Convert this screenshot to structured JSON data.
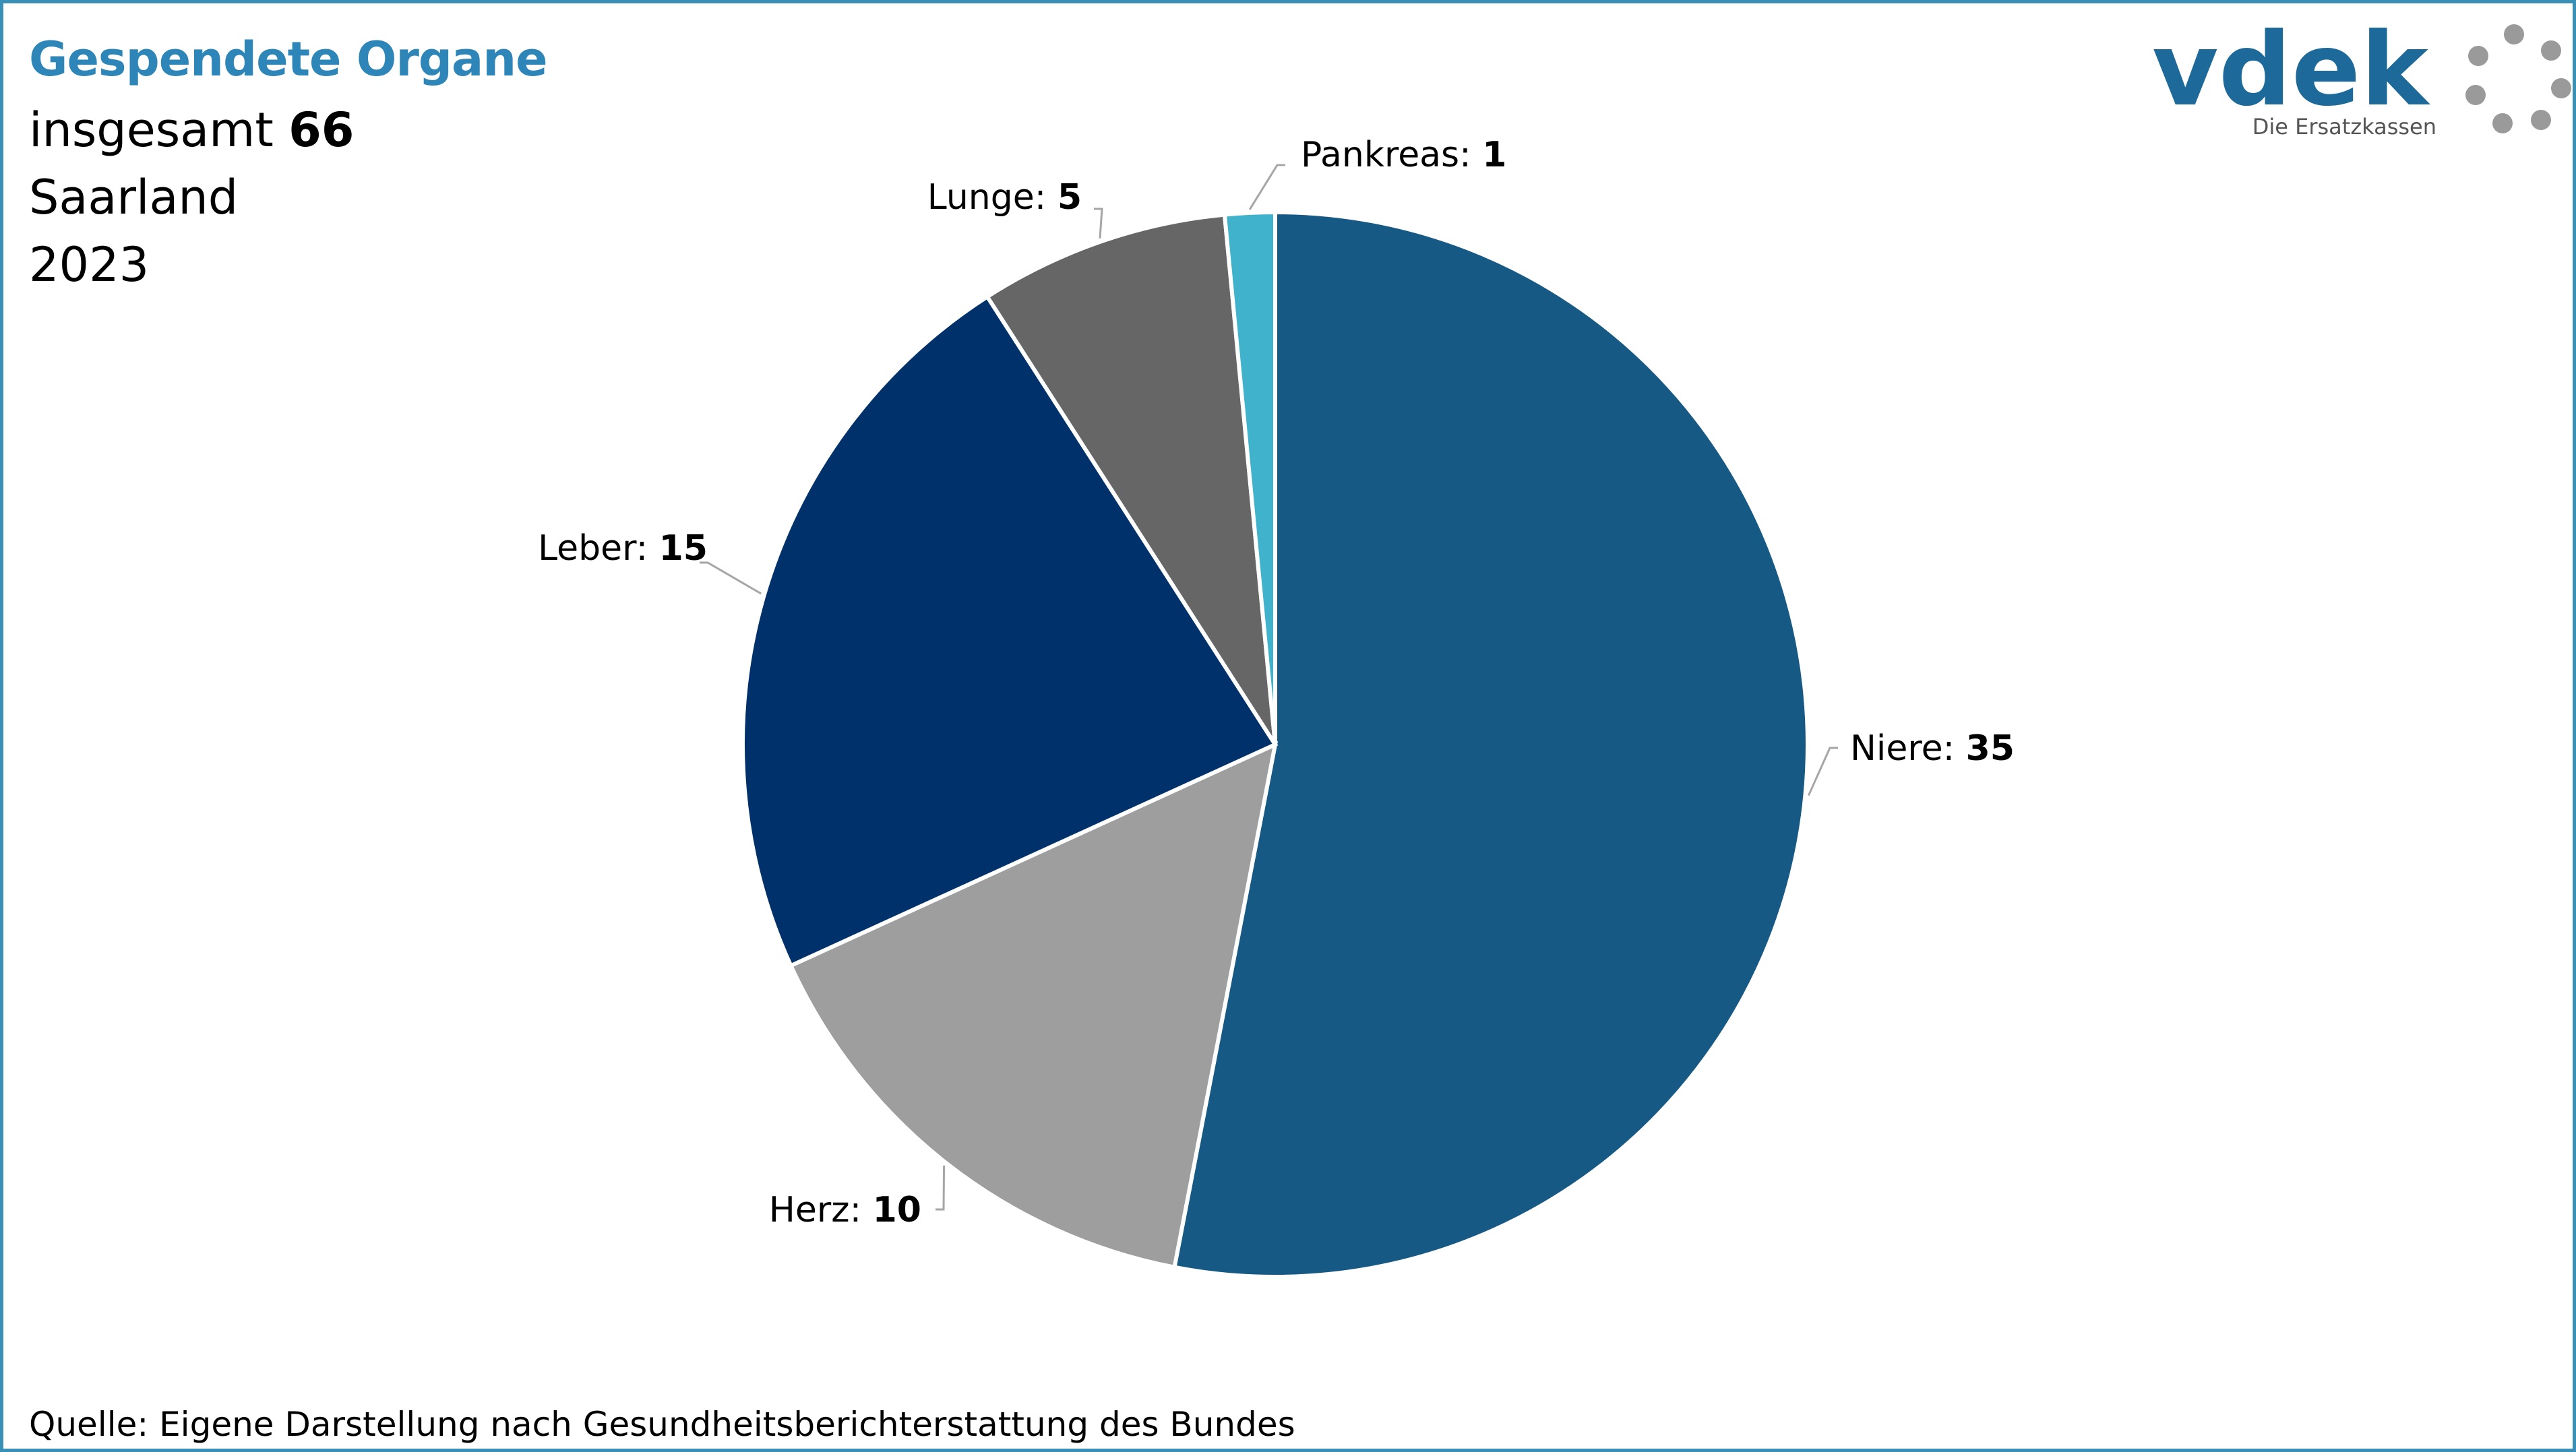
{
  "header": {
    "title": "Gespendete Organe",
    "total_label": "insgesamt",
    "total_value": "66",
    "region": "Saarland",
    "year": "2023"
  },
  "logo": {
    "wordmark": "vdek",
    "tagline": "Die Ersatzkassen",
    "icon": "ring-of-dots-icon",
    "color": "#1d6a9a",
    "dot_color": "#9a9a9a"
  },
  "source": "Quelle: Eigene Darstellung nach Gesundheitsberichterstattung des Bundes",
  "colors": {
    "frame": "#3a8fb7",
    "title": "#2e86b8"
  },
  "chart_data": {
    "type": "pie",
    "title": "Gespendete Organe",
    "start_angle_deg": 0,
    "direction": "clockwise",
    "slices": [
      {
        "label": "Niere",
        "value": 35,
        "color": "#175985"
      },
      {
        "label": "Herz",
        "value": 10,
        "color": "#9e9e9e"
      },
      {
        "label": "Leber",
        "value": 15,
        "color": "#00316a"
      },
      {
        "label": "Lunge",
        "value": 5,
        "color": "#666666"
      },
      {
        "label": "Pankreas",
        "value": 1,
        "color": "#41b2cc"
      }
    ]
  }
}
